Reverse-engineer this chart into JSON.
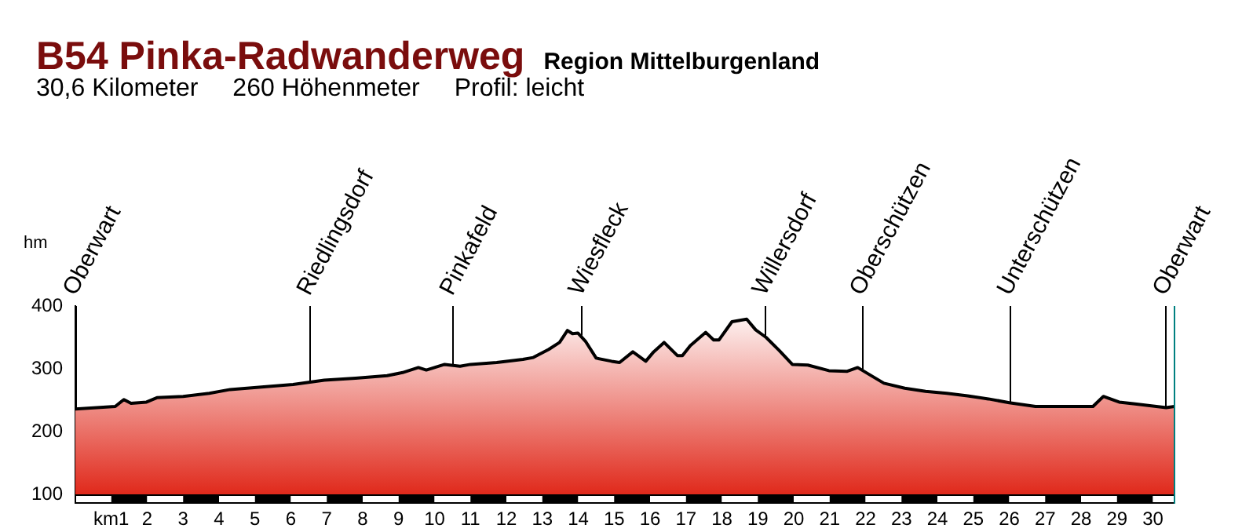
{
  "chart_data": {
    "type": "area",
    "title": "B54 Pinka-Radwanderweg",
    "subtitle": "Region Mittelburgenland",
    "ylabel": "hm",
    "annotations": [
      "30,6 Kilometer",
      "260 Höhenmeter",
      "Profil: leicht"
    ],
    "x": [
      0,
      1.11,
      1.35,
      1.55,
      1.98,
      2.27,
      3.0,
      3.73,
      4.31,
      5.18,
      6.06,
      6.93,
      7.8,
      8.68,
      9.11,
      9.55,
      9.77,
      10.28,
      10.71,
      11.0,
      11.73,
      12.46,
      12.75,
      13.18,
      13.48,
      13.7,
      13.84,
      13.99,
      14.2,
      14.5,
      14.93,
      15.15,
      15.52,
      15.88,
      16.1,
      16.39,
      16.76,
      16.9,
      17.12,
      17.55,
      17.77,
      17.92,
      18.28,
      18.69,
      18.94,
      19.23,
      19.6,
      19.96,
      20.39,
      20.98,
      21.49,
      21.78,
      22.07,
      22.51,
      23.09,
      23.67,
      24.26,
      24.84,
      25.42,
      26.0,
      26.73,
      28.33,
      28.62,
      29.06,
      29.5,
      30.37,
      30.6
    ],
    "series": [
      {
        "color": "#e0291b",
        "values": [
          236,
          240,
          251,
          245,
          247,
          254,
          256,
          261,
          267,
          271,
          275,
          282,
          285,
          289,
          294,
          302,
          298,
          307,
          304,
          307,
          310,
          315,
          318,
          331,
          342,
          361,
          356,
          357,
          344,
          317,
          312,
          310,
          327,
          312,
          327,
          342,
          321,
          321,
          337,
          358,
          346,
          346,
          375,
          379,
          362,
          350,
          329,
          307,
          306,
          297,
          296,
          302,
          292,
          277,
          269,
          264,
          261,
          257,
          252,
          246,
          240,
          240,
          256,
          247,
          244,
          238,
          240
        ]
      }
    ],
    "xlim": [
      0,
      30.6
    ],
    "ylim": [
      100,
      400
    ],
    "yticks": [
      100,
      200,
      300,
      400
    ],
    "xticks": [
      {
        "value": 1,
        "label": "km1"
      },
      2,
      3,
      4,
      5,
      6,
      7,
      8,
      9,
      10,
      11,
      12,
      13,
      14,
      15,
      16,
      17,
      18,
      19,
      20,
      21,
      22,
      23,
      24,
      25,
      26,
      27,
      28,
      29,
      30
    ],
    "ref_lines": [
      {
        "axis": "x",
        "value": 0,
        "label": "Oberwart"
      },
      {
        "axis": "x",
        "value": 6.5,
        "label": "Riedlingsdorf"
      },
      {
        "axis": "x",
        "value": 10.5,
        "label": "Pinkafeld"
      },
      {
        "axis": "x",
        "value": 14.06,
        "label": "Wiesfleck"
      },
      {
        "axis": "x",
        "value": 19.17,
        "label": "Willersdorf"
      },
      {
        "axis": "x",
        "value": 21.9,
        "label": "Oberschützen"
      },
      {
        "axis": "x",
        "value": 26.0,
        "label": "Unterschützen"
      },
      {
        "axis": "x",
        "value": 30.35,
        "label": "Oberwart"
      }
    ],
    "grid": false,
    "legend": false,
    "marker": "none",
    "line_style": "solid"
  }
}
